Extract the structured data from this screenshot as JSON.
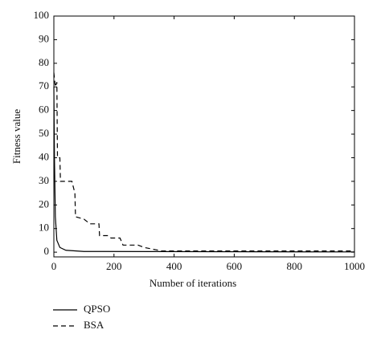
{
  "chart_data": {
    "type": "line",
    "xlabel": "Number of iterations",
    "ylabel": "Fitness value",
    "xlim": [
      0,
      1000
    ],
    "ylim": [
      -2,
      100
    ],
    "xticks": [
      0,
      200,
      400,
      600,
      800,
      1000
    ],
    "yticks": [
      0,
      10,
      20,
      30,
      40,
      50,
      60,
      70,
      80,
      90,
      100
    ],
    "grid": false,
    "legend": "below-left",
    "series": [
      {
        "name": "QPSO",
        "color": "#000000",
        "dash": "solid",
        "x": [
          0,
          2,
          5,
          10,
          20,
          40,
          100,
          1000
        ],
        "values": [
          70,
          40,
          15,
          5,
          2,
          0.8,
          0.3,
          0.1
        ]
      },
      {
        "name": "BSA",
        "color": "#000000",
        "dash": "dashed",
        "x": [
          0,
          5,
          10,
          12,
          20,
          22,
          60,
          70,
          72,
          100,
          120,
          150,
          152,
          180,
          190,
          220,
          230,
          280,
          300,
          340,
          360,
          1000
        ],
        "values": [
          76,
          70,
          72,
          40,
          40,
          30,
          30,
          25,
          15,
          14,
          12,
          12,
          7,
          7,
          6,
          6,
          3,
          3,
          2,
          1,
          0.5,
          0.5
        ]
      }
    ]
  }
}
